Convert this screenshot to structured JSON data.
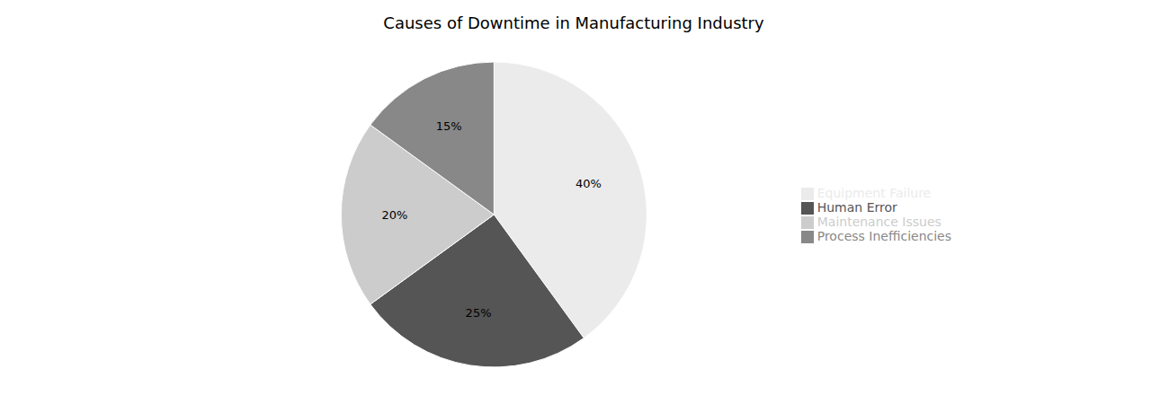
{
  "chart_data": {
    "type": "pie",
    "title": "Causes of Downtime in Manufacturing Industry",
    "categories": [
      "Equipment Failure",
      "Human Error",
      "Maintenance Issues",
      "Process Inefficiencies"
    ],
    "values": [
      40,
      25,
      20,
      15
    ],
    "value_labels": [
      "40%",
      "25%",
      "20%",
      "15%"
    ],
    "colors": [
      "#ebebeb",
      "#555555",
      "#cccccc",
      "#888888"
    ],
    "data_labels": true,
    "legend": "right"
  }
}
